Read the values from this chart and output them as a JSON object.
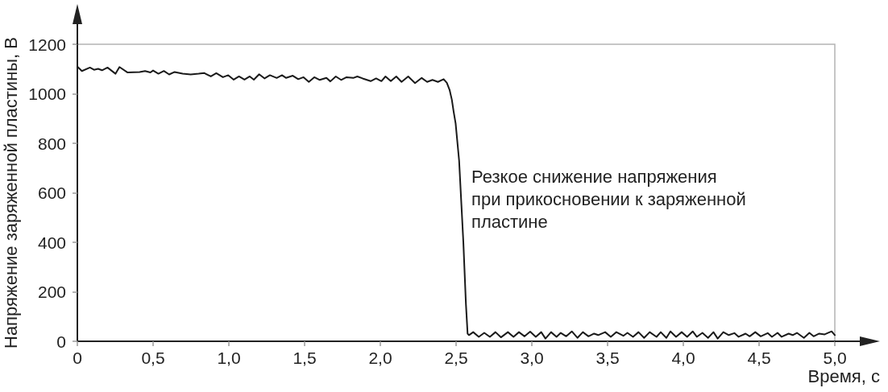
{
  "chart_data": {
    "type": "line",
    "xlabel": "Время, с",
    "ylabel": "Напряжение заряженной пластины, В",
    "annotations": [
      "Резкое снижение напряжения\nпри прикосновении к заряженной\nпластине"
    ],
    "x": [
      0,
      0.03,
      0.083,
      0.11,
      0.137,
      0.163,
      0.199,
      0.252,
      0.278,
      0.332,
      0.411,
      0.447,
      0.482,
      0.5,
      0.535,
      0.571,
      0.606,
      0.642,
      0.695,
      0.748,
      0.801,
      0.837,
      0.881,
      0.917,
      0.961,
      0.996,
      1.032,
      1.067,
      1.103,
      1.138,
      1.165,
      1.2,
      1.236,
      1.271,
      1.316,
      1.351,
      1.378,
      1.422,
      1.458,
      1.493,
      1.528,
      1.564,
      1.6,
      1.644,
      1.67,
      1.706,
      1.741,
      1.777,
      1.821,
      1.848,
      1.883,
      1.936,
      1.972,
      2.007,
      2.034,
      2.069,
      2.105,
      2.14,
      2.184,
      2.229,
      2.273,
      2.309,
      2.344,
      2.38,
      2.418,
      2.439,
      2.457,
      2.472,
      2.484,
      2.497,
      2.52,
      2.548,
      2.565,
      2.576,
      2.585,
      2.613,
      2.65,
      2.686,
      2.723,
      2.76,
      2.796,
      2.842,
      2.879,
      2.915,
      2.952,
      2.989,
      3.026,
      3.062,
      3.09,
      3.127,
      3.163,
      3.191,
      3.227,
      3.264,
      3.301,
      3.337,
      3.374,
      3.411,
      3.438,
      3.484,
      3.521,
      3.558,
      3.604,
      3.631,
      3.668,
      3.704,
      3.741,
      3.778,
      3.823,
      3.851,
      3.888,
      3.915,
      3.952,
      3.989,
      4.025,
      4.062,
      4.089,
      4.126,
      4.163,
      4.199,
      4.227,
      4.264,
      4.3,
      4.337,
      4.365,
      4.411,
      4.438,
      4.475,
      4.511,
      4.557,
      4.585,
      4.622,
      4.649,
      4.695,
      4.722,
      4.75,
      4.796,
      4.832,
      4.86,
      4.897,
      4.933,
      4.979,
      5.0
    ],
    "series": [
      {
        "color": "#1a1a1a",
        "values": [
          1110,
          1092,
          1106,
          1097,
          1101,
          1095,
          1106,
          1081,
          1108,
          1086,
          1088,
          1092,
          1086,
          1094,
          1081,
          1092,
          1078,
          1088,
          1081,
          1078,
          1081,
          1084,
          1070,
          1083,
          1067,
          1075,
          1057,
          1070,
          1057,
          1070,
          1057,
          1079,
          1062,
          1075,
          1064,
          1075,
          1064,
          1073,
          1059,
          1067,
          1048,
          1067,
          1056,
          1064,
          1050,
          1070,
          1056,
          1067,
          1064,
          1070,
          1062,
          1051,
          1062,
          1051,
          1070,
          1051,
          1070,
          1048,
          1070,
          1043,
          1064,
          1048,
          1056,
          1048,
          1059,
          1044,
          1016,
          976,
          927,
          880,
          730,
          400,
          150,
          31,
          25,
          37,
          18,
          34,
          18,
          37,
          16,
          37,
          18,
          37,
          20,
          39,
          18,
          37,
          11,
          37,
          18,
          34,
          20,
          40,
          14,
          37,
          20,
          31,
          25,
          37,
          18,
          37,
          22,
          34,
          18,
          37,
          14,
          37,
          18,
          37,
          14,
          40,
          18,
          37,
          18,
          40,
          18,
          34,
          14,
          37,
          11,
          37,
          25,
          33,
          18,
          31,
          20,
          37,
          20,
          33,
          18,
          34,
          18,
          31,
          25,
          34,
          14,
          34,
          20,
          31,
          28,
          40,
          25
        ]
      }
    ],
    "xlim": [
      0,
      5
    ],
    "ylim": [
      0,
      1200
    ],
    "xticks": [
      0,
      {
        "value": 0.5,
        "label": "0,5"
      },
      {
        "value": 1,
        "label": "1,0"
      },
      {
        "value": 1.5,
        "label": "1,5"
      },
      {
        "value": 2,
        "label": "2,0"
      },
      {
        "value": 2.5,
        "label": "2,5"
      },
      {
        "value": 3,
        "label": "3,0"
      },
      {
        "value": 3.5,
        "label": "3,5"
      },
      {
        "value": 4,
        "label": "4,0"
      },
      {
        "value": 4.5,
        "label": "4,5"
      },
      {
        "value": 5,
        "label": "5,0"
      }
    ],
    "yticks": [
      0,
      200,
      400,
      600,
      800,
      1000,
      1200
    ],
    "grid": false,
    "marker": "none",
    "line_style": "solid"
  }
}
